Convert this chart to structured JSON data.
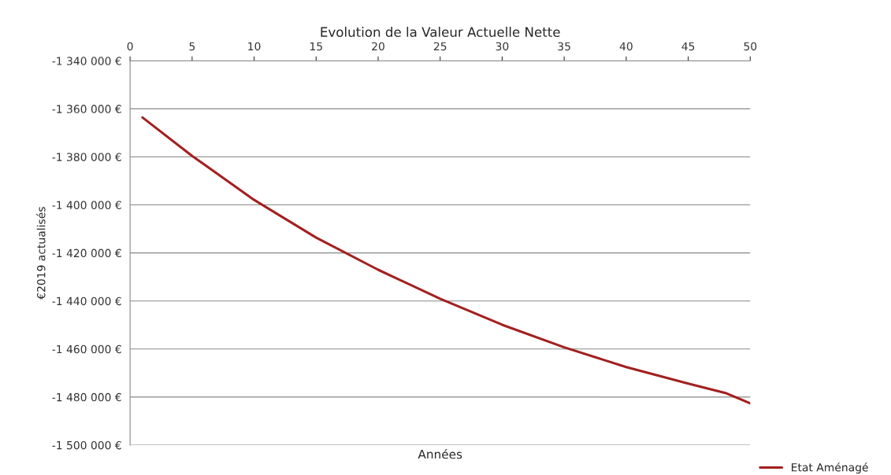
{
  "chart_data": {
    "type": "line",
    "title": "Evolution de la Valeur Actuelle Nette",
    "xlabel": "Années",
    "ylabel": "€2019 actualisés",
    "x": [
      1,
      5,
      10,
      15,
      20,
      25,
      30,
      35,
      40,
      45,
      48,
      50
    ],
    "series": [
      {
        "name": "Etat Aménagé",
        "color": "#a31f1f",
        "values": [
          -1363600,
          -1379600,
          -1397900,
          -1413600,
          -1427000,
          -1439100,
          -1449900,
          -1459300,
          -1467500,
          -1474400,
          -1478300,
          -1482600
        ]
      }
    ],
    "xlim": [
      0,
      50
    ],
    "xticks": [
      0,
      5,
      10,
      15,
      20,
      25,
      30,
      35,
      40,
      45,
      50
    ],
    "ylim": [
      -1500000,
      -1340000
    ],
    "yticks": [
      {
        "value": -1500000,
        "label": "-1 500 000 €"
      },
      {
        "value": -1480000,
        "label": "-1 480 000 €"
      },
      {
        "value": -1460000,
        "label": "-1 460 000 €"
      },
      {
        "value": -1440000,
        "label": "-1 440 000 €"
      },
      {
        "value": -1420000,
        "label": "-1 420 000 €"
      },
      {
        "value": -1400000,
        "label": "-1 400 000 €"
      },
      {
        "value": -1380000,
        "label": "-1 380 000 €"
      },
      {
        "value": -1360000,
        "label": "-1 360 000 €"
      },
      {
        "value": -1340000,
        "label": "-1 340 000 €"
      }
    ],
    "grid": "y",
    "legend": "bottom right",
    "marker": "none",
    "line_style": "solid"
  }
}
